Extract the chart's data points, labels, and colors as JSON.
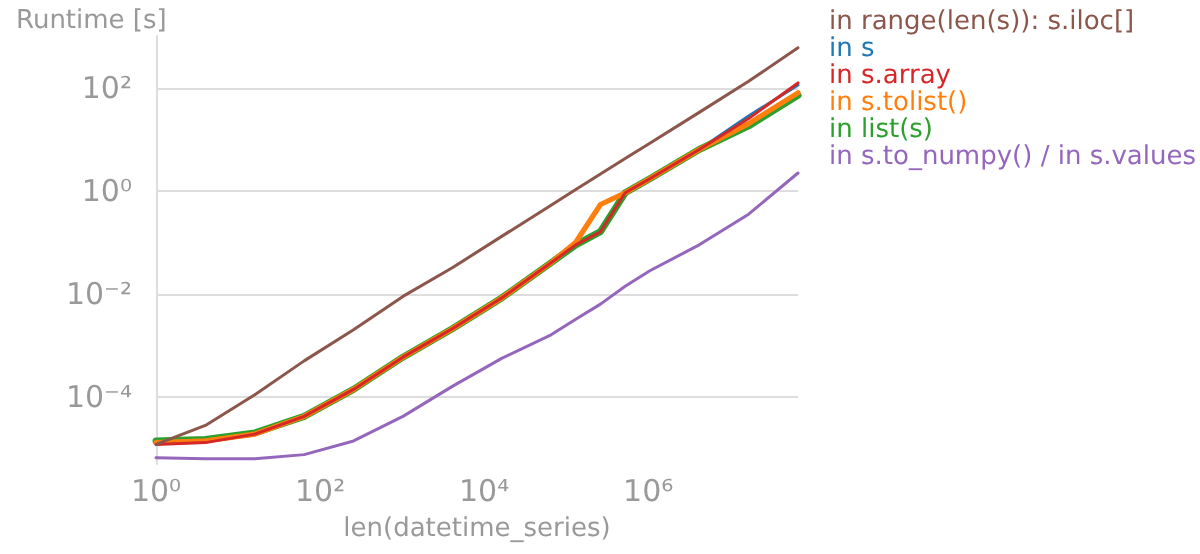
{
  "chart_data": {
    "type": "line",
    "ylabel": "Runtime [s]",
    "xlabel": "len(datetime_series)",
    "log": "xy",
    "grid": "y",
    "legend": "right",
    "marker": "none",
    "line_style": "solid",
    "xlim": [
      1,
      67108864
    ],
    "ylim": [
      5e-06,
      1000
    ],
    "xticks": [
      {
        "value": 1,
        "label": "10⁰"
      },
      {
        "value": 100,
        "label": "10²"
      },
      {
        "value": 10000,
        "label": "10⁴"
      },
      {
        "value": 1000000,
        "label": "10⁶"
      }
    ],
    "yticks": [
      {
        "value": 0.0001,
        "label": "10⁻⁴"
      },
      {
        "value": 0.01,
        "label": "10⁻²"
      },
      {
        "value": 1,
        "label": "10⁰"
      },
      {
        "value": 100,
        "label": "10²"
      }
    ],
    "x": [
      1,
      4,
      16,
      64,
      256,
      1024,
      4096,
      16384,
      65536,
      131072,
      262144,
      524288,
      1048576,
      4194304,
      16777216,
      67108864
    ],
    "series": [
      {
        "name": "in range(len(s)): s.iloc[]",
        "color": "#8c564b",
        "values": [
          1.2e-05,
          2.8e-05,
          0.00011,
          0.0005,
          0.002,
          0.0089,
          0.032,
          0.13,
          0.52,
          1.05,
          2.1,
          4.2,
          8.3,
          33,
          132,
          590
        ]
      },
      {
        "name": "in s",
        "color": "#1f77b4",
        "values": [
          null,
          null,
          null,
          null,
          null,
          null,
          null,
          null,
          null,
          null,
          null,
          null,
          1.7,
          6.3,
          28,
          112
        ]
      },
      {
        "name": "in s.array",
        "color": "#d62728",
        "values": [
          1.2e-05,
          1.3e-05,
          1.9e-05,
          4.2e-05,
          0.00014,
          0.00059,
          0.0021,
          0.0083,
          0.04,
          0.089,
          0.16,
          0.91,
          1.7,
          6.3,
          25,
          123
        ]
      },
      {
        "name": "in s.tolist()",
        "color": "#ff7f0e",
        "values": [
          1.3e-05,
          1.4e-05,
          1.9e-05,
          4.2e-05,
          0.00014,
          0.00059,
          0.0021,
          0.0083,
          0.04,
          0.1,
          0.54,
          0.91,
          1.7,
          6.3,
          20,
          79
        ]
      },
      {
        "name": "in list(s)",
        "color": "#2ca02c",
        "values": [
          1.4e-05,
          1.5e-05,
          2e-05,
          4.2e-05,
          0.00014,
          0.00059,
          0.0021,
          0.0083,
          0.04,
          0.089,
          0.16,
          0.91,
          1.7,
          6.3,
          18,
          71
        ]
      },
      {
        "name": "in s.to_numpy() / in s.values",
        "color": "#9467bd",
        "values": [
          6.6e-06,
          6.3e-06,
          6.3e-06,
          7.6e-06,
          1.4e-05,
          4.2e-05,
          0.00016,
          0.00056,
          0.0016,
          0.0032,
          0.0063,
          0.014,
          0.028,
          0.089,
          0.35,
          2.2
        ]
      }
    ]
  }
}
